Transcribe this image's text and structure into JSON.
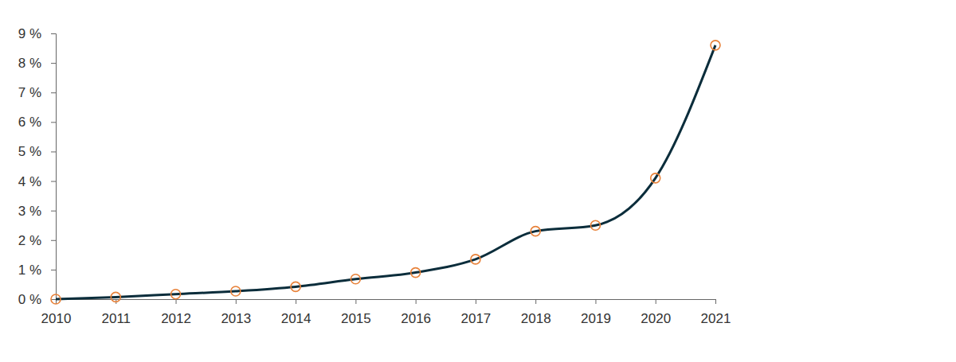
{
  "chart_data": {
    "type": "line",
    "x": [
      2010,
      2011,
      2012,
      2013,
      2014,
      2015,
      2016,
      2017,
      2018,
      2019,
      2020,
      2021
    ],
    "values": [
      0,
      0.07,
      0.17,
      0.27,
      0.42,
      0.68,
      0.9,
      1.35,
      2.3,
      2.5,
      4.1,
      8.6
    ],
    "color": "#0b2d3b",
    "marker": "circle",
    "xlim": [
      2010,
      2021
    ],
    "xticks": [
      2010,
      2011,
      2012,
      2013,
      2014,
      2015,
      2016,
      2017,
      2018,
      2019,
      2020,
      2021
    ],
    "ylim": [
      0,
      9
    ],
    "yticks": [
      {
        "value": 0,
        "label": "0 %"
      },
      {
        "value": 1,
        "label": "1 %"
      },
      {
        "value": 2,
        "label": "2 %"
      },
      {
        "value": 3,
        "label": "3 %"
      },
      {
        "value": 4,
        "label": "4 %"
      },
      {
        "value": 5,
        "label": "5 %"
      },
      {
        "value": 6,
        "label": "6 %"
      },
      {
        "value": 7,
        "label": "7 %"
      },
      {
        "value": 8,
        "label": "8 %"
      },
      {
        "value": 9,
        "label": "9 %"
      }
    ],
    "grid": false
  }
}
